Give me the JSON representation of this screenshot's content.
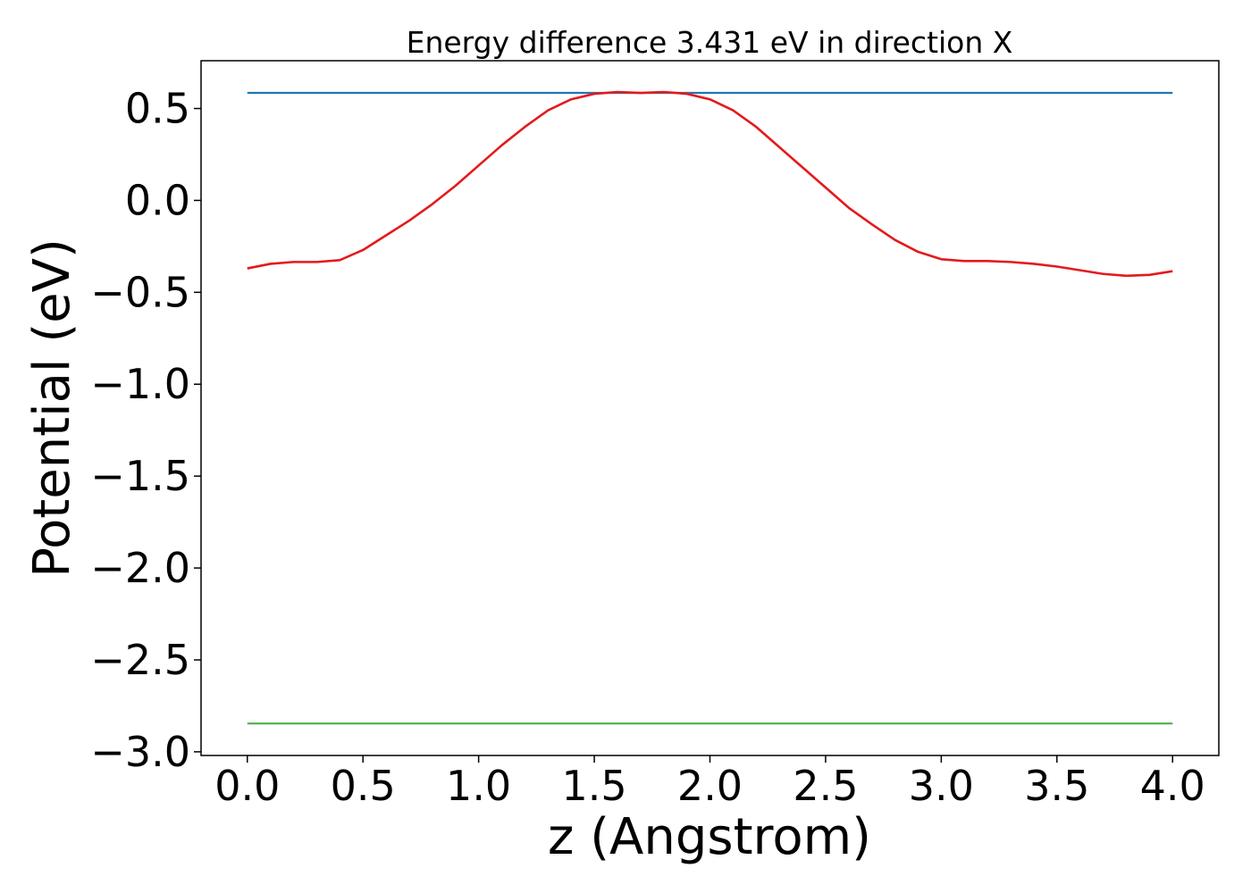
{
  "chart_data": {
    "type": "line",
    "title": "Energy difference 3.431 eV in direction X",
    "xlabel": "z (Angstrom)",
    "ylabel": "Potential (eV)",
    "xlim": [
      -0.2,
      4.2
    ],
    "ylim": [
      -3.02,
      0.76
    ],
    "xticks": [
      0.0,
      0.5,
      1.0,
      1.5,
      2.0,
      2.5,
      3.0,
      3.5,
      4.0
    ],
    "xtick_labels": [
      "0.0",
      "0.5",
      "1.0",
      "1.5",
      "2.0",
      "2.5",
      "3.0",
      "3.5",
      "4.0"
    ],
    "yticks": [
      0.5,
      0.0,
      -0.5,
      -1.0,
      -1.5,
      -2.0,
      -2.5,
      -3.0
    ],
    "ytick_labels": [
      "0.5",
      "0.0",
      "−0.5",
      "−1.0",
      "−1.5",
      "−2.0",
      "−2.5",
      "−3.0"
    ],
    "grid": false,
    "series": [
      {
        "color": "#1f77b4",
        "x": [
          0.0,
          4.0
        ],
        "y": [
          0.585,
          0.585
        ]
      },
      {
        "color": "#e41a1c",
        "x": [
          0.0,
          0.1,
          0.2,
          0.3,
          0.4,
          0.5,
          0.6,
          0.7,
          0.8,
          0.9,
          1.0,
          1.1,
          1.2,
          1.3,
          1.4,
          1.5,
          1.6,
          1.7,
          1.8,
          1.9,
          2.0,
          2.1,
          2.2,
          2.3,
          2.4,
          2.5,
          2.6,
          2.7,
          2.8,
          2.9,
          3.0,
          3.1,
          3.2,
          3.3,
          3.4,
          3.5,
          3.6,
          3.7,
          3.8,
          3.9,
          4.0
        ],
        "y": [
          -0.37,
          -0.345,
          -0.335,
          -0.335,
          -0.325,
          -0.27,
          -0.19,
          -0.11,
          -0.02,
          0.08,
          0.19,
          0.3,
          0.4,
          0.49,
          0.55,
          0.58,
          0.59,
          0.585,
          0.59,
          0.58,
          0.55,
          0.49,
          0.4,
          0.29,
          0.18,
          0.07,
          -0.04,
          -0.13,
          -0.215,
          -0.28,
          -0.32,
          -0.33,
          -0.33,
          -0.335,
          -0.345,
          -0.36,
          -0.38,
          -0.4,
          -0.41,
          -0.405,
          -0.385
        ]
      },
      {
        "color": "#4daf4a",
        "x": [
          0.0,
          4.0
        ],
        "y": [
          -2.846,
          -2.846
        ]
      }
    ]
  }
}
